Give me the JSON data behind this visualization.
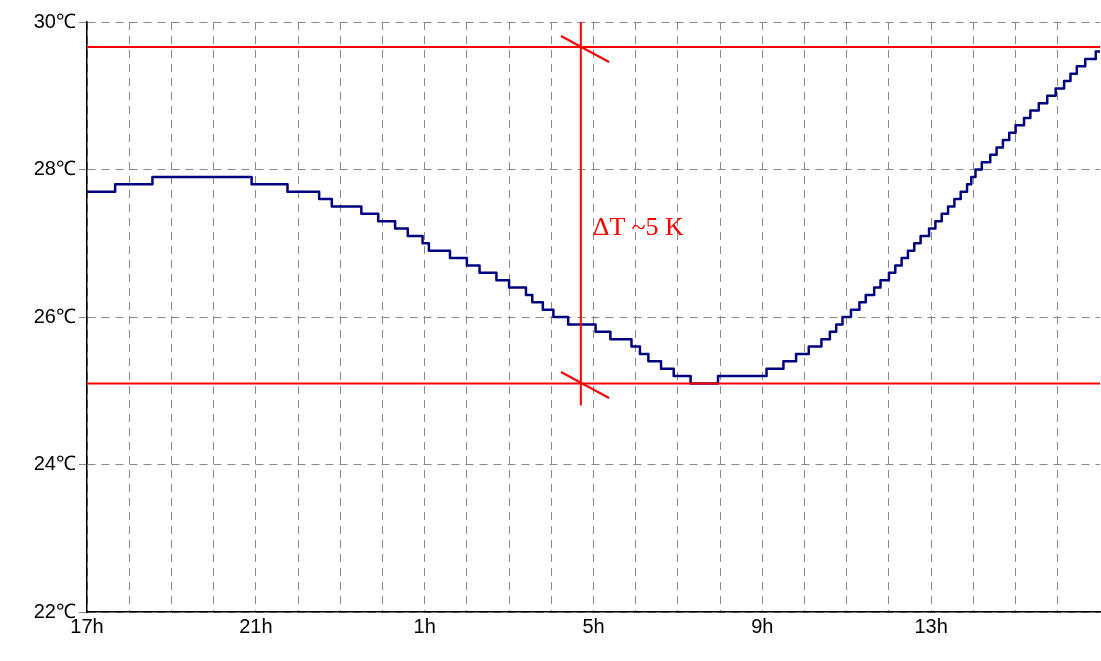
{
  "chart_data": {
    "type": "step",
    "xlim": [
      "--01-01T17:00",
      "--01-02T17:00"
    ],
    "xticks": [
      {
        "value": "--01-01T17:00",
        "label": "17h"
      },
      {
        "value": "--01-01T18:00",
        "label": null
      },
      {
        "value": "--01-01T19:00",
        "label": null
      },
      {
        "value": "--01-01T20:00",
        "label": null
      },
      {
        "value": "--01-01T21:00",
        "label": "21h"
      },
      {
        "value": "--01-01T22:00",
        "label": null
      },
      {
        "value": "--01-01T23:00",
        "label": null
      },
      {
        "value": "--01-02T00:00",
        "label": null
      },
      {
        "value": "--01-02T01:00",
        "label": "1h"
      },
      {
        "value": "--01-02T02:00",
        "label": null
      },
      {
        "value": "--01-02T03:00",
        "label": null
      },
      {
        "value": "--01-02T04:00",
        "label": null
      },
      {
        "value": "--01-02T05:00",
        "label": "5h"
      },
      {
        "value": "--01-02T06:00",
        "label": null
      },
      {
        "value": "--01-02T07:00",
        "label": null
      },
      {
        "value": "--01-02T08:00",
        "label": null
      },
      {
        "value": "--01-02T09:00",
        "label": "9h"
      },
      {
        "value": "--01-02T10:00",
        "label": null
      },
      {
        "value": "--01-02T11:00",
        "label": null
      },
      {
        "value": "--01-02T12:00",
        "label": null
      },
      {
        "value": "--01-02T13:00",
        "label": "13h"
      },
      {
        "value": "--01-02T14:00",
        "label": null
      },
      {
        "value": "--01-02T15:00",
        "label": null
      },
      {
        "value": "--01-02T16:00",
        "label": null
      }
    ],
    "ylim": [
      22,
      30
    ],
    "yticks": [
      {
        "value": 22,
        "label": "22℃"
      },
      {
        "value": 24,
        "label": "24℃"
      },
      {
        "value": 26,
        "label": "26℃"
      },
      {
        "value": 28,
        "label": "28℃"
      },
      {
        "value": 30,
        "label": "30℃"
      }
    ],
    "grid": true,
    "legend": false,
    "x": [
      "--01-01T17:00",
      "--01-01T17:40",
      "--01-01T18:33",
      "--01-01T20:54",
      "--01-01T21:45",
      "--01-01T22:30",
      "--01-01T22:48",
      "--01-01T23:30",
      "--01-01T23:54",
      "--01-02T00:18",
      "--01-02T00:36",
      "--01-02T00:57",
      "--01-02T01:06",
      "--01-02T01:36",
      "--01-02T02:00",
      "--01-02T02:18",
      "--01-02T02:42",
      "--01-02T03:00",
      "--01-02T03:24",
      "--01-02T03:33",
      "--01-02T03:48",
      "--01-02T04:03",
      "--01-02T04:24",
      "--01-02T05:03",
      "--01-02T05:24",
      "--01-02T05:54",
      "--01-02T06:06",
      "--01-02T06:18",
      "--01-02T06:36",
      "--01-02T06:54",
      "--01-02T07:18",
      "--01-02T07:57",
      "--01-02T09:06",
      "--01-02T09:30",
      "--01-02T09:48",
      "--01-02T10:06",
      "--01-02T10:24",
      "--01-02T10:36",
      "--01-02T10:45",
      "--01-02T10:54",
      "--01-02T11:06",
      "--01-02T11:18",
      "--01-02T11:27",
      "--01-02T11:39",
      "--01-02T11:48",
      "--01-02T12:00",
      "--01-02T12:09",
      "--01-02T12:18",
      "--01-02T12:27",
      "--01-02T12:36",
      "--01-02T12:45",
      "--01-02T12:57",
      "--01-02T13:06",
      "--01-02T13:15",
      "--01-02T13:24",
      "--01-02T13:33",
      "--01-02T13:42",
      "--01-02T13:51",
      "--01-02T13:57",
      "--01-02T14:03",
      "--01-02T14:12",
      "--01-02T14:24",
      "--01-02T14:33",
      "--01-02T14:42",
      "--01-02T14:51",
      "--01-02T15:00",
      "--01-02T15:12",
      "--01-02T15:21",
      "--01-02T15:33",
      "--01-02T15:45",
      "--01-02T15:57",
      "--01-02T16:09",
      "--01-02T16:18",
      "--01-02T16:27",
      "--01-02T16:39",
      "--01-02T16:54",
      "--01-02T17:00"
    ],
    "series": [
      {
        "color": "#000080",
        "values": [
          27.7,
          27.8,
          27.9,
          27.8,
          27.7,
          27.6,
          27.5,
          27.4,
          27.3,
          27.2,
          27.1,
          27.0,
          26.9,
          26.8,
          26.7,
          26.6,
          26.5,
          26.4,
          26.3,
          26.2,
          26.1,
          26.0,
          25.9,
          25.8,
          25.7,
          25.6,
          25.5,
          25.4,
          25.3,
          25.2,
          25.1,
          25.2,
          25.3,
          25.4,
          25.5,
          25.6,
          25.7,
          25.8,
          25.9,
          26.0,
          26.1,
          26.2,
          26.3,
          26.4,
          26.5,
          26.6,
          26.7,
          26.8,
          26.9,
          27.0,
          27.1,
          27.2,
          27.3,
          27.4,
          27.5,
          27.6,
          27.7,
          27.8,
          27.9,
          28.0,
          28.1,
          28.2,
          28.3,
          28.4,
          28.5,
          28.6,
          28.7,
          28.8,
          28.9,
          29.0,
          29.1,
          29.2,
          29.3,
          29.4,
          29.5,
          29.6,
          29.6
        ]
      }
    ],
    "ref_lines": [
      {
        "axis": "y",
        "value": 29.66,
        "color": "#ff0000"
      },
      {
        "axis": "y",
        "value": 25.1,
        "color": "#ff0000"
      },
      {
        "axis": "x",
        "value": "--01-02T04:42",
        "color": "#ff0000"
      }
    ],
    "annotations": [
      {
        "text": "ΔT ~5 K",
        "x": "--01-02T04:42",
        "y": 27.2
      }
    ]
  }
}
